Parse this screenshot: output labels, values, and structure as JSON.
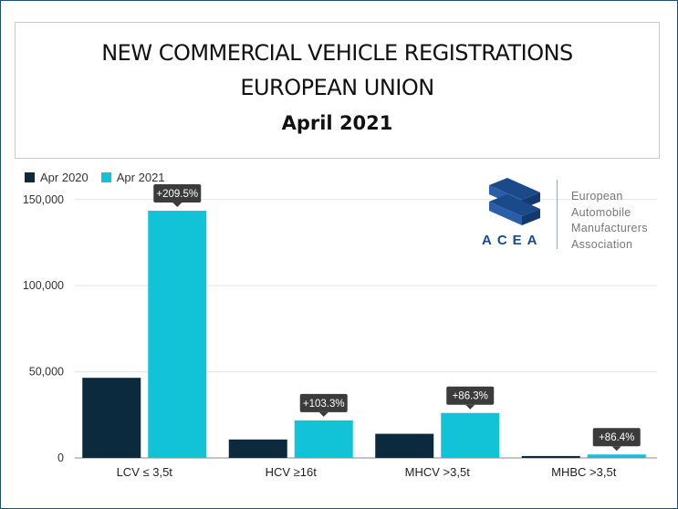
{
  "header": {
    "title_line1": "NEW COMMERCIAL VEHICLE REGISTRATIONS",
    "title_line2": "EUROPEAN UNION",
    "subtitle": "April 2021"
  },
  "logo": {
    "acronym": "ACEA",
    "name_lines": [
      "European",
      "Automobile",
      "Manufacturers",
      "Association"
    ]
  },
  "colors": {
    "apr2020": "#0b2a3e",
    "apr2021": "#12c3d8",
    "label_bg": "#3b3b3b"
  },
  "chart_data": {
    "type": "bar",
    "categories": [
      "LCV ≤ 3,5t",
      "HCV ≥16t",
      "MHCV >3,5t",
      "MHBC >3,5t"
    ],
    "series": [
      {
        "name": "Apr 2020",
        "values": [
          46500,
          10700,
          14000,
          1100
        ]
      },
      {
        "name": "Apr 2021",
        "values": [
          143500,
          21800,
          26100,
          2000
        ]
      }
    ],
    "change_labels": [
      "+209.5%",
      "+103.3%",
      "+86.3%",
      "+86.4%"
    ],
    "yticks": [
      0,
      50000,
      100000,
      150000
    ],
    "ytick_labels": [
      "0",
      "50,000",
      "100,000",
      "150,000"
    ],
    "ylim": [
      0,
      152000
    ],
    "grid": true,
    "legend": "top-left",
    "xlabel": "",
    "ylabel": ""
  }
}
